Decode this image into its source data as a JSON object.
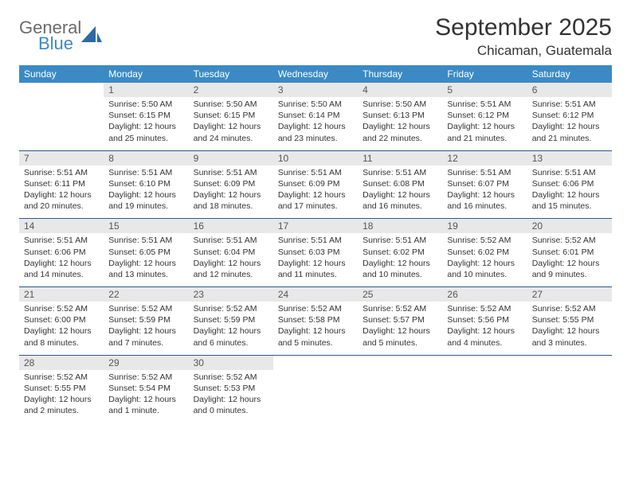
{
  "logo": {
    "word1": "General",
    "word2": "Blue",
    "icon_color": "#2d6aa3"
  },
  "title": "September 2025",
  "location": "Chicaman, Guatemala",
  "colors": {
    "header_bg": "#3b8ac4",
    "header_text": "#ffffff",
    "daynum_bg": "#e8e8e8",
    "daynum_text": "#555555",
    "body_text": "#333333",
    "week_border": "#2d5a8a"
  },
  "day_names": [
    "Sunday",
    "Monday",
    "Tuesday",
    "Wednesday",
    "Thursday",
    "Friday",
    "Saturday"
  ],
  "weeks": [
    [
      null,
      {
        "n": "1",
        "sr": "Sunrise: 5:50 AM",
        "ss": "Sunset: 6:15 PM",
        "d1": "Daylight: 12 hours",
        "d2": "and 25 minutes."
      },
      {
        "n": "2",
        "sr": "Sunrise: 5:50 AM",
        "ss": "Sunset: 6:15 PM",
        "d1": "Daylight: 12 hours",
        "d2": "and 24 minutes."
      },
      {
        "n": "3",
        "sr": "Sunrise: 5:50 AM",
        "ss": "Sunset: 6:14 PM",
        "d1": "Daylight: 12 hours",
        "d2": "and 23 minutes."
      },
      {
        "n": "4",
        "sr": "Sunrise: 5:50 AM",
        "ss": "Sunset: 6:13 PM",
        "d1": "Daylight: 12 hours",
        "d2": "and 22 minutes."
      },
      {
        "n": "5",
        "sr": "Sunrise: 5:51 AM",
        "ss": "Sunset: 6:12 PM",
        "d1": "Daylight: 12 hours",
        "d2": "and 21 minutes."
      },
      {
        "n": "6",
        "sr": "Sunrise: 5:51 AM",
        "ss": "Sunset: 6:12 PM",
        "d1": "Daylight: 12 hours",
        "d2": "and 21 minutes."
      }
    ],
    [
      {
        "n": "7",
        "sr": "Sunrise: 5:51 AM",
        "ss": "Sunset: 6:11 PM",
        "d1": "Daylight: 12 hours",
        "d2": "and 20 minutes."
      },
      {
        "n": "8",
        "sr": "Sunrise: 5:51 AM",
        "ss": "Sunset: 6:10 PM",
        "d1": "Daylight: 12 hours",
        "d2": "and 19 minutes."
      },
      {
        "n": "9",
        "sr": "Sunrise: 5:51 AM",
        "ss": "Sunset: 6:09 PM",
        "d1": "Daylight: 12 hours",
        "d2": "and 18 minutes."
      },
      {
        "n": "10",
        "sr": "Sunrise: 5:51 AM",
        "ss": "Sunset: 6:09 PM",
        "d1": "Daylight: 12 hours",
        "d2": "and 17 minutes."
      },
      {
        "n": "11",
        "sr": "Sunrise: 5:51 AM",
        "ss": "Sunset: 6:08 PM",
        "d1": "Daylight: 12 hours",
        "d2": "and 16 minutes."
      },
      {
        "n": "12",
        "sr": "Sunrise: 5:51 AM",
        "ss": "Sunset: 6:07 PM",
        "d1": "Daylight: 12 hours",
        "d2": "and 16 minutes."
      },
      {
        "n": "13",
        "sr": "Sunrise: 5:51 AM",
        "ss": "Sunset: 6:06 PM",
        "d1": "Daylight: 12 hours",
        "d2": "and 15 minutes."
      }
    ],
    [
      {
        "n": "14",
        "sr": "Sunrise: 5:51 AM",
        "ss": "Sunset: 6:06 PM",
        "d1": "Daylight: 12 hours",
        "d2": "and 14 minutes."
      },
      {
        "n": "15",
        "sr": "Sunrise: 5:51 AM",
        "ss": "Sunset: 6:05 PM",
        "d1": "Daylight: 12 hours",
        "d2": "and 13 minutes."
      },
      {
        "n": "16",
        "sr": "Sunrise: 5:51 AM",
        "ss": "Sunset: 6:04 PM",
        "d1": "Daylight: 12 hours",
        "d2": "and 12 minutes."
      },
      {
        "n": "17",
        "sr": "Sunrise: 5:51 AM",
        "ss": "Sunset: 6:03 PM",
        "d1": "Daylight: 12 hours",
        "d2": "and 11 minutes."
      },
      {
        "n": "18",
        "sr": "Sunrise: 5:51 AM",
        "ss": "Sunset: 6:02 PM",
        "d1": "Daylight: 12 hours",
        "d2": "and 10 minutes."
      },
      {
        "n": "19",
        "sr": "Sunrise: 5:52 AM",
        "ss": "Sunset: 6:02 PM",
        "d1": "Daylight: 12 hours",
        "d2": "and 10 minutes."
      },
      {
        "n": "20",
        "sr": "Sunrise: 5:52 AM",
        "ss": "Sunset: 6:01 PM",
        "d1": "Daylight: 12 hours",
        "d2": "and 9 minutes."
      }
    ],
    [
      {
        "n": "21",
        "sr": "Sunrise: 5:52 AM",
        "ss": "Sunset: 6:00 PM",
        "d1": "Daylight: 12 hours",
        "d2": "and 8 minutes."
      },
      {
        "n": "22",
        "sr": "Sunrise: 5:52 AM",
        "ss": "Sunset: 5:59 PM",
        "d1": "Daylight: 12 hours",
        "d2": "and 7 minutes."
      },
      {
        "n": "23",
        "sr": "Sunrise: 5:52 AM",
        "ss": "Sunset: 5:59 PM",
        "d1": "Daylight: 12 hours",
        "d2": "and 6 minutes."
      },
      {
        "n": "24",
        "sr": "Sunrise: 5:52 AM",
        "ss": "Sunset: 5:58 PM",
        "d1": "Daylight: 12 hours",
        "d2": "and 5 minutes."
      },
      {
        "n": "25",
        "sr": "Sunrise: 5:52 AM",
        "ss": "Sunset: 5:57 PM",
        "d1": "Daylight: 12 hours",
        "d2": "and 5 minutes."
      },
      {
        "n": "26",
        "sr": "Sunrise: 5:52 AM",
        "ss": "Sunset: 5:56 PM",
        "d1": "Daylight: 12 hours",
        "d2": "and 4 minutes."
      },
      {
        "n": "27",
        "sr": "Sunrise: 5:52 AM",
        "ss": "Sunset: 5:55 PM",
        "d1": "Daylight: 12 hours",
        "d2": "and 3 minutes."
      }
    ],
    [
      {
        "n": "28",
        "sr": "Sunrise: 5:52 AM",
        "ss": "Sunset: 5:55 PM",
        "d1": "Daylight: 12 hours",
        "d2": "and 2 minutes."
      },
      {
        "n": "29",
        "sr": "Sunrise: 5:52 AM",
        "ss": "Sunset: 5:54 PM",
        "d1": "Daylight: 12 hours",
        "d2": "and 1 minute."
      },
      {
        "n": "30",
        "sr": "Sunrise: 5:52 AM",
        "ss": "Sunset: 5:53 PM",
        "d1": "Daylight: 12 hours",
        "d2": "and 0 minutes."
      },
      null,
      null,
      null,
      null
    ]
  ]
}
